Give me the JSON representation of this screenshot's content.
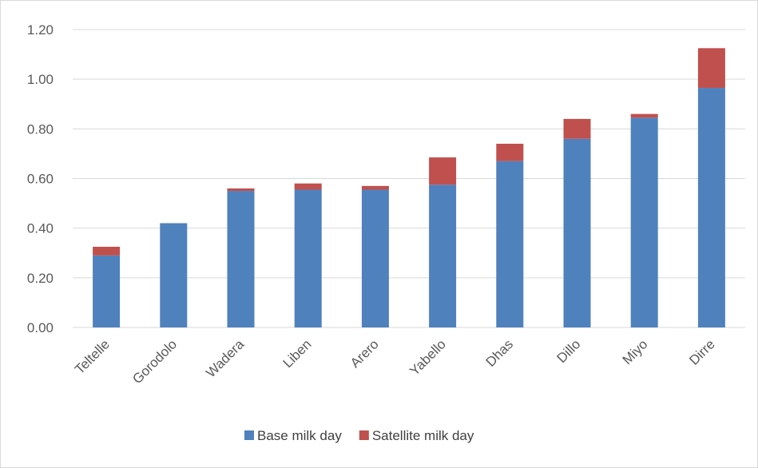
{
  "chart_data": {
    "type": "bar",
    "stacked": true,
    "categories": [
      "Teltelle",
      "Gorodolo",
      "Wadera",
      "Liben",
      "Arero",
      "Yabello",
      "Dhas",
      "Dillo",
      "Miyo",
      "Dirre"
    ],
    "series": [
      {
        "name": "Base milk day",
        "color": "#4f81bd",
        "values": [
          0.29,
          0.42,
          0.55,
          0.555,
          0.555,
          0.575,
          0.67,
          0.76,
          0.845,
          0.965
        ]
      },
      {
        "name": "Satellite milk day",
        "color": "#c0504d",
        "values": [
          0.035,
          0.0,
          0.01,
          0.025,
          0.015,
          0.11,
          0.07,
          0.08,
          0.015,
          0.16
        ]
      }
    ],
    "ylim": [
      0,
      1.2
    ],
    "yticks": [
      "0.00",
      "0.20",
      "0.40",
      "0.60",
      "0.80",
      "1.00",
      "1.20"
    ],
    "grid": true,
    "legend_position": "bottom",
    "xlabel_rotation": "-45deg",
    "title": "",
    "xlabel": "",
    "ylabel": ""
  }
}
